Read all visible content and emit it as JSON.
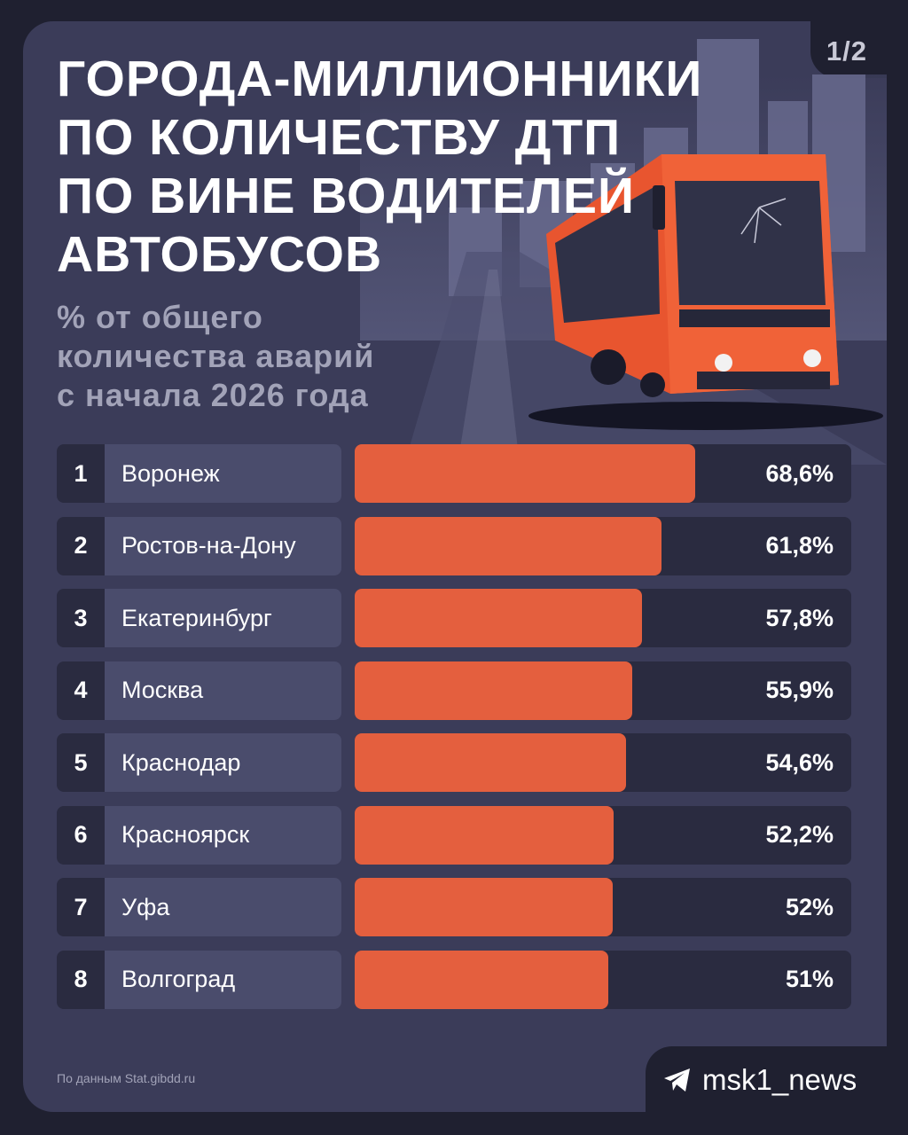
{
  "page_indicator": "1/2",
  "title_lines": [
    "Города-миллионники",
    "по количеству ДТП",
    "по вине водителей",
    "автобусов"
  ],
  "subtitle_lines": [
    "% от общего",
    "количества аварий",
    "с начала 2026 года"
  ],
  "source": "По данным Stat.gibdd.ru",
  "brand": {
    "name": "msk1_news",
    "icon": "telegram-icon"
  },
  "colors": {
    "background": "#1f2030",
    "card": "#3b3c59",
    "bar": "#e45f3e",
    "track": "#2a2b40",
    "label_bg": "#4a4c6c"
  },
  "chart_data": {
    "type": "bar",
    "orientation": "horizontal",
    "title": "Города-миллионники по количеству ДТП по вине водителей автобусов",
    "subtitle": "% от общего количества аварий с начала 2026 года",
    "ranks": [
      "1",
      "2",
      "3",
      "4",
      "5",
      "6",
      "7",
      "8"
    ],
    "categories": [
      "Воронеж",
      "Ростов-на-Дону",
      "Екатеринбург",
      "Москва",
      "Краснодар",
      "Красноярск",
      "Уфа",
      "Волгоград"
    ],
    "values": [
      68.6,
      61.8,
      57.8,
      55.9,
      54.6,
      52.2,
      52,
      51
    ],
    "value_labels": [
      "68,6%",
      "61,8%",
      "57,8%",
      "55,9%",
      "54,6%",
      "52,2%",
      "52%",
      "51%"
    ],
    "xlim": [
      0,
      100
    ],
    "unit": "%"
  }
}
